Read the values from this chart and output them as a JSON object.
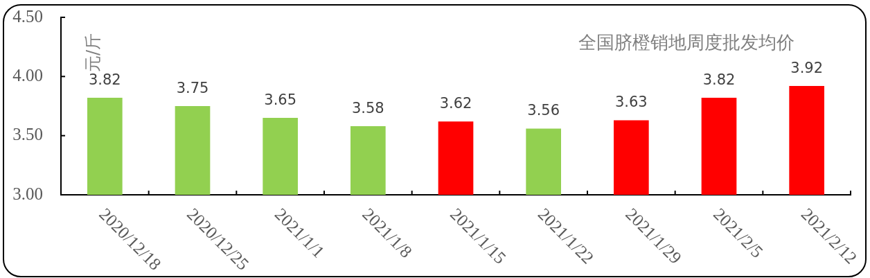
{
  "chart_data": {
    "type": "bar",
    "title": "全国脐橙销地周度批发均价",
    "ylabel": "元/斤",
    "categories": [
      "2020/12/18",
      "2020/12/25",
      "2021/1/1",
      "2021/1/8",
      "2021/1/15",
      "2021/1/22",
      "2021/1/29",
      "2021/2/5",
      "2021/2/12"
    ],
    "values": [
      3.82,
      3.75,
      3.65,
      3.58,
      3.62,
      3.56,
      3.63,
      3.82,
      3.92
    ],
    "colors": [
      "#92d050",
      "#92d050",
      "#92d050",
      "#92d050",
      "#ff0000",
      "#92d050",
      "#ff0000",
      "#ff0000",
      "#ff0000"
    ],
    "ylim": [
      3,
      4.5
    ],
    "yticks": [
      {
        "value": 3,
        "label": "3.00"
      },
      {
        "value": 3.5,
        "label": "3.50"
      },
      {
        "value": 4,
        "label": "4.00"
      },
      {
        "value": 4.5,
        "label": "4.50"
      }
    ],
    "data_labels": true
  }
}
